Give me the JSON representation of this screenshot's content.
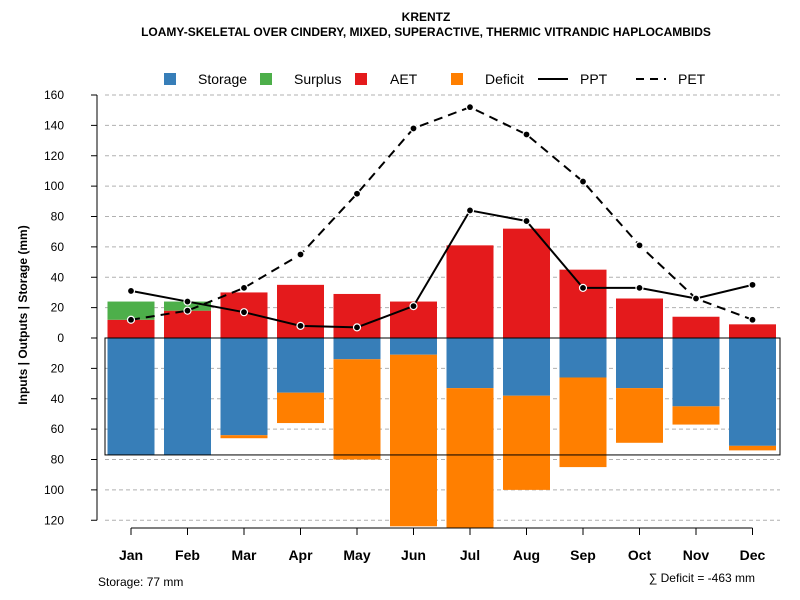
{
  "chart_data": {
    "type": "bar",
    "title": "KRENTZ",
    "subtitle": "LOAMY-SKELETAL OVER CINDERY, MIXED, SUPERACTIVE, THERMIC VITRANDIC HAPLOCAMBIDS",
    "ylabel": "Inputs | Outputs | Storage    (mm)",
    "categories": [
      "Jan",
      "Feb",
      "Mar",
      "Apr",
      "May",
      "Jun",
      "Jul",
      "Aug",
      "Sep",
      "Oct",
      "Nov",
      "Dec"
    ],
    "y_ticks_up": [
      "0",
      "20",
      "40",
      "60",
      "80",
      "100",
      "120",
      "140",
      "160"
    ],
    "y_ticks_down": [
      "20",
      "40",
      "60",
      "80",
      "100",
      "120"
    ],
    "ylim": [
      -120,
      160
    ],
    "storage_capacity": 77,
    "legend": [
      {
        "key": "storage",
        "label": "Storage",
        "kind": "box",
        "color": "#377EB8"
      },
      {
        "key": "surplus",
        "label": "Surplus",
        "kind": "box",
        "color": "#4DAF4A"
      },
      {
        "key": "aet",
        "label": "AET",
        "kind": "box",
        "color": "#E41A1C"
      },
      {
        "key": "deficit",
        "label": "Deficit",
        "kind": "box",
        "color": "#FF7F00"
      },
      {
        "key": "ppt",
        "label": "PPT",
        "kind": "solid"
      },
      {
        "key": "pet",
        "label": "PET",
        "kind": "dashed"
      }
    ],
    "colors": {
      "storage": "#377EB8",
      "surplus": "#4DAF4A",
      "aet": "#E41A1C",
      "deficit": "#FF7F00",
      "grid": "#B0B0B0",
      "line": "#000000"
    },
    "series": [
      {
        "name": "AET",
        "values": [
          12,
          18,
          30,
          35,
          29,
          24,
          61,
          72,
          45,
          26,
          14,
          9
        ]
      },
      {
        "name": "Surplus",
        "values": [
          12,
          6,
          0,
          0,
          0,
          0,
          0,
          0,
          0,
          0,
          0,
          0
        ]
      },
      {
        "name": "Storage",
        "values": [
          77,
          77,
          64,
          36,
          14,
          11,
          33,
          38,
          26,
          33,
          45,
          71
        ]
      },
      {
        "name": "Deficit",
        "values": [
          0,
          0,
          2,
          20,
          66,
          113,
          92,
          62,
          59,
          36,
          12,
          3
        ]
      },
      {
        "name": "PPT",
        "values": [
          31,
          24,
          17,
          8,
          7,
          21,
          84,
          77,
          33,
          33,
          26,
          35
        ]
      },
      {
        "name": "PET",
        "values": [
          12,
          18,
          33,
          55,
          95,
          138,
          152,
          134,
          103,
          61,
          26,
          12
        ]
      }
    ],
    "footer_left": "Storage: 77 mm",
    "footer_right": "∑ Deficit = -463 mm"
  }
}
